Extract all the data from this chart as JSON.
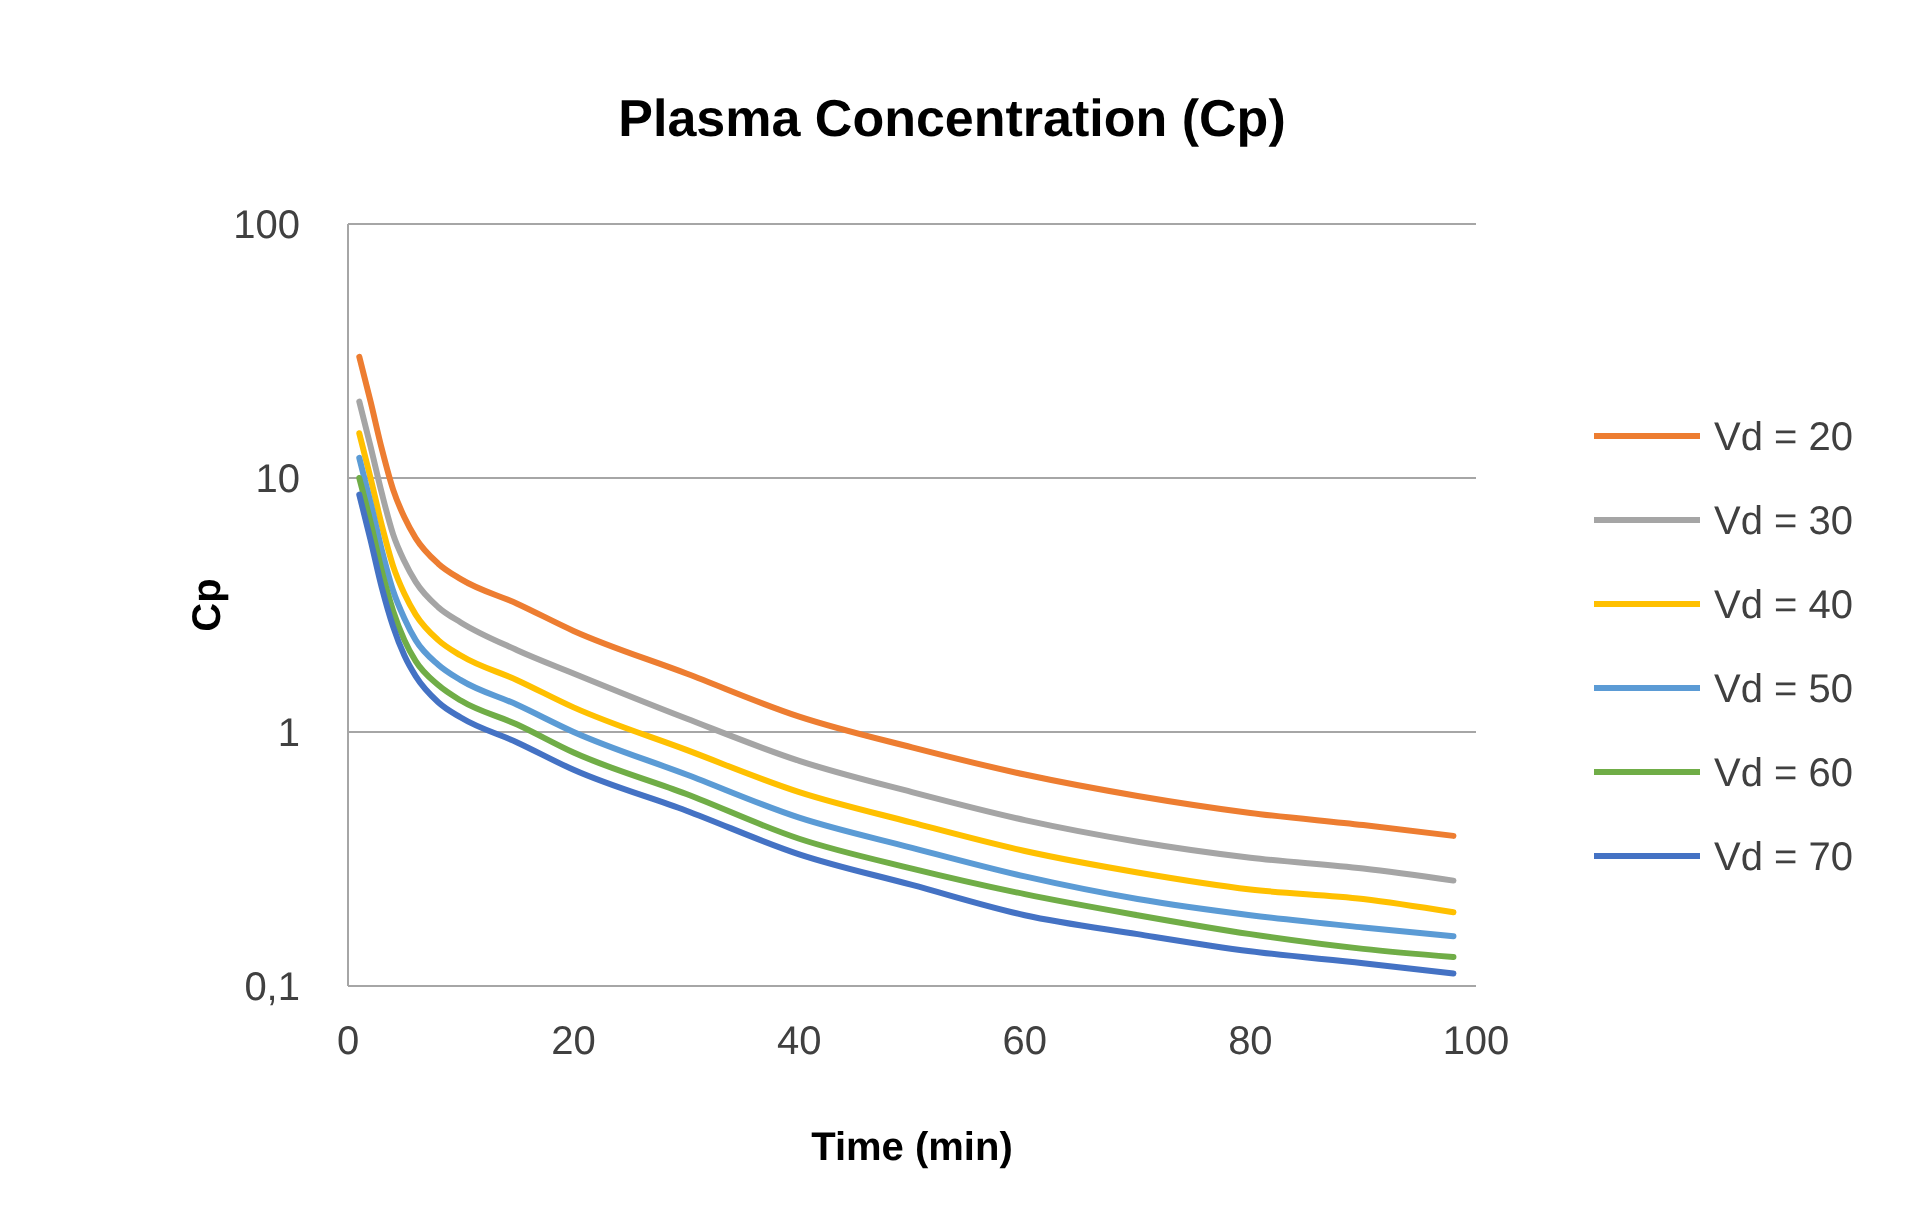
{
  "chart_data": {
    "type": "line",
    "title": "Plasma Concentration (Cp)",
    "xlabel": "Time (min)",
    "ylabel": "Cp",
    "x": [
      1,
      2,
      3,
      4,
      5,
      6,
      8,
      10,
      15,
      20,
      30,
      40,
      50,
      60,
      70,
      80,
      90,
      98
    ],
    "series": [
      {
        "name": "Vd = 20",
        "color": "#ed7d31",
        "values": [
          30,
          20,
          13,
          9,
          7,
          5.8,
          4.6,
          4,
          3.2,
          2.5,
          1.7,
          1.15,
          0.87,
          0.68,
          0.56,
          0.48,
          0.43,
          0.39
        ]
      },
      {
        "name": "Vd = 30",
        "color": "#a5a5a5",
        "values": [
          20,
          13.3,
          8.7,
          6,
          4.7,
          3.9,
          3.1,
          2.7,
          2.1,
          1.7,
          1.13,
          0.77,
          0.58,
          0.45,
          0.37,
          0.32,
          0.29,
          0.26
        ]
      },
      {
        "name": "Vd = 40",
        "color": "#ffc000",
        "values": [
          15,
          10,
          6.5,
          4.5,
          3.5,
          2.9,
          2.3,
          2,
          1.6,
          1.25,
          0.85,
          0.58,
          0.44,
          0.34,
          0.28,
          0.24,
          0.22,
          0.195
        ]
      },
      {
        "name": "Vd = 50",
        "color": "#5b9bd5",
        "values": [
          12,
          8,
          5.2,
          3.6,
          2.8,
          2.3,
          1.84,
          1.6,
          1.28,
          1,
          0.68,
          0.46,
          0.35,
          0.27,
          0.22,
          0.19,
          0.17,
          0.157
        ]
      },
      {
        "name": "Vd = 60",
        "color": "#70ad47",
        "values": [
          10,
          6.7,
          4.3,
          3,
          2.3,
          1.9,
          1.53,
          1.33,
          1.07,
          0.83,
          0.57,
          0.38,
          0.29,
          0.23,
          0.19,
          0.16,
          0.14,
          0.13
        ]
      },
      {
        "name": "Vd = 70",
        "color": "#4472c4",
        "values": [
          8.6,
          5.7,
          3.7,
          2.6,
          2,
          1.66,
          1.31,
          1.14,
          0.91,
          0.71,
          0.49,
          0.33,
          0.25,
          0.19,
          0.16,
          0.137,
          0.123,
          0.112
        ]
      }
    ],
    "xlim": [
      0,
      100
    ],
    "xticks": [
      0,
      20,
      40,
      60,
      80,
      100
    ],
    "ylim": [
      0.1,
      100
    ],
    "yticks": [
      {
        "value": 0.1,
        "label": "0,1"
      },
      1,
      10,
      100
    ],
    "log": "y",
    "grid": "y",
    "legend": "right",
    "marker": "none",
    "line_style": "solid"
  }
}
